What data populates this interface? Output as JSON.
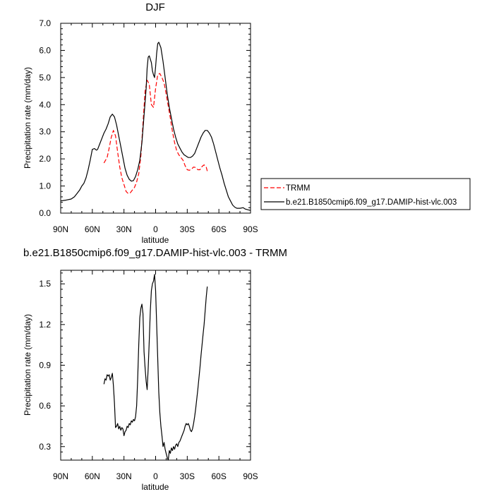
{
  "chart_data": [
    {
      "type": "line",
      "title": "DJF",
      "xlabel": "latitude",
      "ylabel": "Precipitation rate (mm/day)",
      "xlim": [
        90,
        -90
      ],
      "ylim": [
        0,
        7
      ],
      "xticks": [
        90,
        60,
        30,
        0,
        -30,
        -60,
        -90
      ],
      "xtick_labels": [
        "90N",
        "60N",
        "30N",
        "0",
        "30S",
        "60S",
        "90S"
      ],
      "yticks": [
        0,
        1,
        2,
        3,
        4,
        5,
        6,
        7
      ],
      "ytick_labels": [
        "0.0",
        "1.0",
        "2.0",
        "3.0",
        "4.0",
        "5.0",
        "6.0",
        "7.0"
      ],
      "legend": {
        "placement": "right-outside"
      },
      "series": [
        {
          "name": "TRMM",
          "color": "#ff0000",
          "dash": "dashed",
          "x": [
            49,
            46,
            44,
            42,
            40,
            38,
            36,
            34,
            32,
            30,
            28,
            26,
            24,
            22,
            20,
            18,
            16,
            14,
            12,
            10,
            8,
            6,
            4,
            2,
            0,
            -2,
            -4,
            -6,
            -8,
            -10,
            -12,
            -14,
            -16,
            -18,
            -20,
            -22,
            -24,
            -26,
            -28,
            -30,
            -32,
            -34,
            -36,
            -38,
            -40,
            -42,
            -44,
            -46,
            -48,
            -49
          ],
          "y": [
            1.85,
            2.05,
            2.4,
            2.8,
            3.05,
            2.85,
            2.25,
            1.7,
            1.3,
            1.05,
            0.8,
            0.72,
            0.75,
            0.85,
            0.95,
            1.15,
            1.45,
            2.1,
            3.3,
            4.5,
            4.9,
            4.75,
            4.0,
            3.9,
            4.6,
            5.1,
            5.15,
            5.0,
            4.8,
            4.4,
            3.95,
            3.5,
            3.0,
            2.6,
            2.3,
            2.15,
            2.05,
            1.95,
            1.75,
            1.6,
            1.58,
            1.62,
            1.7,
            1.68,
            1.6,
            1.6,
            1.72,
            1.78,
            1.7,
            1.55
          ]
        },
        {
          "name": "b.e21.B1850cmip6.f09_g17.DAMIP-hist-vlc.003",
          "color": "#000000",
          "dash": "solid",
          "x": [
            90,
            85,
            80,
            77,
            75,
            72,
            70,
            68,
            66,
            64,
            62,
            60,
            58,
            56,
            55,
            53,
            51,
            49,
            47,
            45,
            43,
            41,
            39,
            37,
            35,
            33,
            31,
            29,
            27,
            25,
            23,
            21,
            19,
            17,
            15,
            13,
            11,
            9,
            8,
            7,
            6,
            4,
            3,
            2,
            1,
            0,
            -1,
            -2,
            -3,
            -5,
            -7,
            -9,
            -11,
            -13,
            -15,
            -17,
            -19,
            -21,
            -23,
            -25,
            -27,
            -29,
            -31,
            -33,
            -35,
            -37,
            -39,
            -41,
            -43,
            -45,
            -47,
            -49,
            -51,
            -53,
            -55,
            -57,
            -59,
            -61,
            -63,
            -65,
            -67,
            -69,
            -71,
            -73,
            -75,
            -77,
            -80,
            -83,
            -85,
            -88,
            -90
          ],
          "y": [
            0.45,
            0.48,
            0.52,
            0.6,
            0.7,
            0.85,
            1.0,
            1.1,
            1.3,
            1.6,
            1.95,
            2.35,
            2.38,
            2.32,
            2.35,
            2.55,
            2.75,
            2.95,
            3.1,
            3.3,
            3.55,
            3.65,
            3.55,
            3.25,
            2.85,
            2.45,
            2.05,
            1.65,
            1.4,
            1.25,
            1.18,
            1.2,
            1.35,
            1.6,
            1.95,
            2.6,
            3.6,
            4.6,
            5.35,
            5.75,
            5.8,
            5.55,
            5.25,
            5.1,
            5.0,
            5.4,
            5.9,
            6.25,
            6.3,
            6.1,
            5.6,
            5.0,
            4.4,
            3.9,
            3.5,
            3.1,
            2.8,
            2.55,
            2.4,
            2.25,
            2.15,
            2.1,
            2.05,
            2.05,
            2.1,
            2.2,
            2.4,
            2.6,
            2.8,
            2.95,
            3.05,
            3.05,
            2.95,
            2.8,
            2.55,
            2.25,
            1.95,
            1.65,
            1.4,
            1.1,
            0.85,
            0.6,
            0.45,
            0.3,
            0.22,
            0.18,
            0.18,
            0.2,
            0.15,
            0.12,
            0.1
          ]
        }
      ]
    },
    {
      "type": "line",
      "title": "b.e21.B1850cmip6.f09_g17.DAMIP-hist-vlc.003 - TRMM",
      "xlabel": "latitude",
      "ylabel": "Precipitation rate (mm/day)",
      "xlim": [
        90,
        -90
      ],
      "ylim": [
        0.2,
        1.6
      ],
      "xticks": [
        90,
        60,
        30,
        0,
        -30,
        -60,
        -90
      ],
      "xtick_labels": [
        "90N",
        "60N",
        "30N",
        "0",
        "30S",
        "60S",
        "90S"
      ],
      "yticks": [
        0.3,
        0.6,
        0.9,
        1.2,
        1.5
      ],
      "ytick_labels": [
        "0.3",
        "0.6",
        "0.9",
        "1.2",
        "1.5"
      ],
      "series": [
        {
          "color": "#000000",
          "dash": "solid",
          "x": [
            49,
            48,
            47,
            46,
            45,
            44,
            43,
            42,
            41,
            40,
            39,
            38,
            37,
            36,
            35,
            34,
            33,
            32,
            31,
            30,
            29,
            28,
            27,
            26,
            25,
            24,
            23,
            22,
            21,
            20,
            19,
            18,
            17,
            16,
            15,
            14,
            13,
            12,
            11,
            10,
            9,
            8,
            7,
            6,
            5,
            4,
            3,
            2,
            1,
            0,
            -1,
            -2,
            -3,
            -4,
            -5,
            -6,
            -7,
            -8,
            -9,
            -10,
            -11,
            -12,
            -13,
            -14,
            -15,
            -16,
            -17,
            -18,
            -19,
            -20,
            -21,
            -22,
            -23,
            -24,
            -25,
            -26,
            -27,
            -28,
            -29,
            -30,
            -31,
            -32,
            -33,
            -34,
            -35,
            -36,
            -37,
            -38,
            -39,
            -40,
            -41,
            -42,
            -43,
            -44,
            -45,
            -46,
            -47,
            -48,
            -49
          ],
          "y": [
            0.76,
            0.8,
            0.79,
            0.83,
            0.82,
            0.83,
            0.79,
            0.81,
            0.84,
            0.75,
            0.62,
            0.44,
            0.45,
            0.47,
            0.43,
            0.45,
            0.42,
            0.44,
            0.43,
            0.38,
            0.41,
            0.42,
            0.45,
            0.44,
            0.47,
            0.46,
            0.49,
            0.48,
            0.5,
            0.49,
            0.52,
            0.6,
            0.8,
            1.05,
            1.25,
            1.32,
            1.35,
            1.28,
            1.0,
            0.88,
            0.78,
            0.72,
            0.88,
            1.08,
            1.3,
            1.45,
            1.5,
            1.52,
            1.57,
            1.45,
            1.2,
            0.95,
            0.7,
            0.55,
            0.45,
            0.38,
            0.3,
            0.33,
            0.28,
            0.25,
            0.22,
            0.2,
            0.27,
            0.25,
            0.29,
            0.27,
            0.3,
            0.28,
            0.31,
            0.32,
            0.3,
            0.33,
            0.34,
            0.36,
            0.38,
            0.4,
            0.42,
            0.45,
            0.47,
            0.46,
            0.47,
            0.45,
            0.42,
            0.41,
            0.43,
            0.47,
            0.52,
            0.58,
            0.65,
            0.72,
            0.8,
            0.88,
            0.97,
            1.05,
            1.13,
            1.2,
            1.3,
            1.4,
            1.48
          ]
        }
      ]
    }
  ]
}
